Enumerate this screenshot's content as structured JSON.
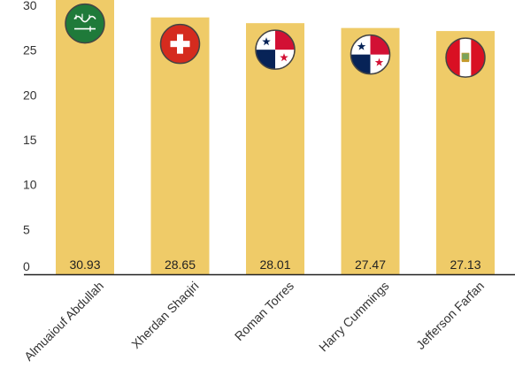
{
  "colors": {
    "bar": "#efcb68",
    "axis": "#222222",
    "text": "#333333"
  },
  "chart_data": {
    "type": "bar",
    "title": "",
    "xlabel": "",
    "ylabel": "",
    "ylim": [
      0,
      30
    ],
    "y_ticks": [
      0,
      5,
      10,
      15,
      20,
      25,
      30
    ],
    "grid": false,
    "categories": [
      "Almuaiouf Abdullah",
      "Xherdan Shaqiri",
      "Roman Torres",
      "Harry Cummings",
      "Jefferson Farfan"
    ],
    "values": [
      30.93,
      28.65,
      28.01,
      27.47,
      27.13
    ],
    "value_labels": [
      "30.93",
      "28.65",
      "28.01",
      "27.47",
      "27.13"
    ],
    "flags": [
      "saudi-arabia",
      "switzerland",
      "panama",
      "panama",
      "peru"
    ]
  }
}
